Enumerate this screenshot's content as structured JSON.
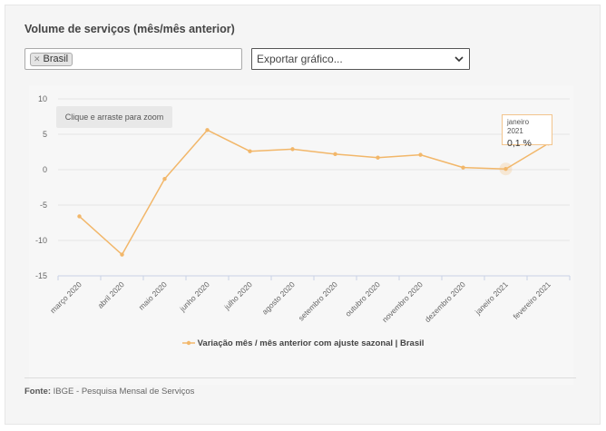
{
  "header": {
    "title": "Volume de serviços (mês/mês anterior)"
  },
  "filter": {
    "chips": [
      {
        "label": "Brasil"
      }
    ]
  },
  "export": {
    "label": "Exportar gráfico..."
  },
  "zoom_hint": "Clique e arraste para zoom",
  "tooltip": {
    "date": "janeiro 2021",
    "value": "0,1 %"
  },
  "source": {
    "label": "Fonte:",
    "text": "IBGE - Pesquisa Mensal de Serviços"
  },
  "colors": {
    "series": "#f2b76a",
    "tooltip_border": "#f2c48c",
    "grid": "#e6e6e6"
  },
  "chart_data": {
    "type": "line",
    "categories": [
      "março 2020",
      "abril 2020",
      "maio 2020",
      "junho 2020",
      "julho 2020",
      "agosto 2020",
      "setembro 2020",
      "outubro 2020",
      "novembro 2020",
      "dezembro 2020",
      "janeiro 2021",
      "fevereiro 2021"
    ],
    "series": [
      {
        "name": "Variação mês / mês anterior com ajuste sazonal | Brasil",
        "values": [
          -6.6,
          -12.0,
          -1.3,
          5.6,
          2.6,
          2.9,
          2.2,
          1.7,
          2.1,
          0.3,
          0.1,
          3.7
        ]
      }
    ],
    "yticks": [
      10,
      5,
      0,
      -5,
      -10,
      -15
    ],
    "ylim": [
      -15,
      10
    ],
    "grid": true,
    "legend_position": "bottom",
    "highlighted_index": 10
  }
}
